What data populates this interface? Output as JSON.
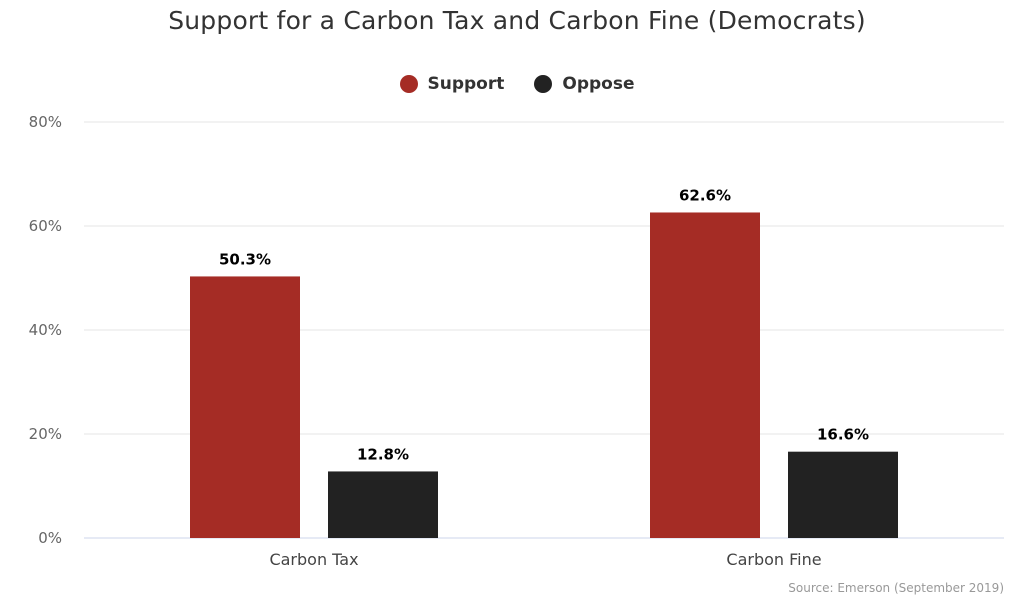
{
  "chart_data": {
    "type": "bar",
    "title": "Support for a Carbon Tax and Carbon Fine (Democrats)",
    "categories": [
      "Carbon Tax",
      "Carbon Fine"
    ],
    "series": [
      {
        "name": "Support",
        "color": "#a52c25",
        "values": [
          50.3,
          62.6
        ],
        "labels": [
          "50.3%",
          "62.6%"
        ]
      },
      {
        "name": "Oppose",
        "color": "#222222",
        "values": [
          12.8,
          16.6
        ],
        "labels": [
          "12.8%",
          "16.6%"
        ]
      }
    ],
    "ylim": [
      0,
      80
    ],
    "yticks": [
      0,
      20,
      40,
      60,
      80
    ],
    "ytick_labels": [
      "0%",
      "20%",
      "40%",
      "60%",
      "80%"
    ],
    "grid": true,
    "legend_position": "top-center",
    "credit": "Source: Emerson (September 2019)"
  }
}
